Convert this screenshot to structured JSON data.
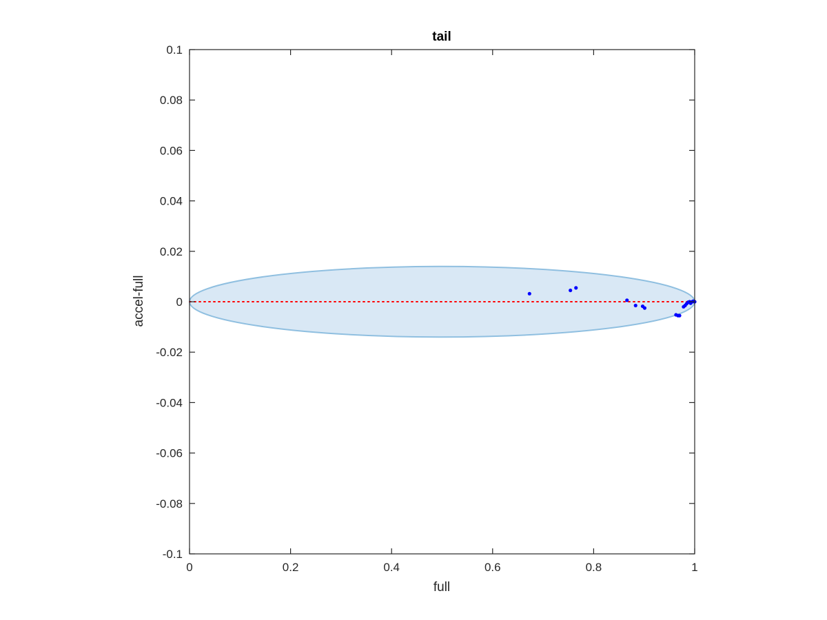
{
  "chart_data": {
    "type": "scatter",
    "title": "tail",
    "xlabel": "full",
    "ylabel": "accel-full",
    "xlim": [
      0,
      1
    ],
    "ylim": [
      -0.1,
      0.1
    ],
    "x_ticks": [
      0,
      0.2,
      0.4,
      0.6,
      0.8,
      1
    ],
    "x_tick_labels": [
      "0",
      "0.2",
      "0.4",
      "0.6",
      "0.8",
      "1"
    ],
    "y_ticks": [
      -0.1,
      -0.08,
      -0.06,
      -0.04,
      -0.02,
      0,
      0.02,
      0.04,
      0.06,
      0.08,
      0.1
    ],
    "y_tick_labels": [
      "-0.1",
      "-0.08",
      "-0.06",
      "-0.04",
      "-0.02",
      "0",
      "0.02",
      "0.04",
      "0.06",
      "0.08",
      "0.1"
    ],
    "grid": false,
    "ellipse": {
      "center": [
        0.5,
        0
      ],
      "radius_x": 0.5,
      "radius_y": 0.014,
      "fill": "#d9e8f5",
      "stroke": "#8fbfe0"
    },
    "reference_line": {
      "y": 0,
      "style": "dotted",
      "color": "#ff0000"
    },
    "series": [
      {
        "color": "#0000ff",
        "points": [
          [
            0.673,
            0.0032
          ],
          [
            0.754,
            0.0045
          ],
          [
            0.765,
            0.0055
          ],
          [
            0.866,
            0.0006
          ],
          [
            0.883,
            -0.0015
          ],
          [
            0.897,
            -0.0018
          ],
          [
            0.901,
            -0.0025
          ],
          [
            0.963,
            -0.0052
          ],
          [
            0.967,
            -0.0055
          ],
          [
            0.97,
            -0.0055
          ],
          [
            0.978,
            -0.002
          ],
          [
            0.981,
            -0.0015
          ],
          [
            0.984,
            -0.0008
          ],
          [
            0.987,
            -0.0002
          ],
          [
            0.99,
            0.0
          ],
          [
            0.992,
            -0.0006
          ],
          [
            0.995,
            0.0
          ],
          [
            0.997,
            0.0002
          ],
          [
            0.999,
            0.0001
          ],
          [
            1.0,
            0.0
          ]
        ]
      }
    ]
  }
}
